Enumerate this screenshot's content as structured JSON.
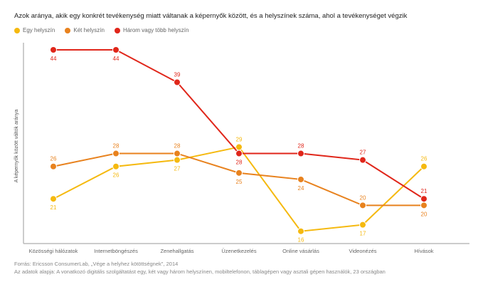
{
  "chart_data": {
    "type": "line",
    "title": "Azok aránya, akik egy konkrét tevékenység miatt váltanak a képernyők között, és a helyszínek száma, ahol a tevékenységet végzik",
    "xlabel": "",
    "ylabel": "A képernyők között váltók aránya",
    "categories": [
      "Közösségi hálózatok",
      "Internetböngészés",
      "Zenehallgatás",
      "Üzenetkezelés",
      "Online vásárlás",
      "Videonézés",
      "Hívások"
    ],
    "ylim": [
      14.1,
      45.1
    ],
    "grid": false,
    "legend_position": "top-left",
    "series": [
      {
        "name": "Egy helyszín",
        "color": "#f5b90f",
        "values": [
          21,
          26,
          27,
          29,
          16,
          17,
          26
        ]
      },
      {
        "name": "Két helyszín",
        "color": "#e8821e",
        "values": [
          26,
          28,
          28,
          25,
          24,
          20,
          20
        ]
      },
      {
        "name": "Három vagy több helyszín",
        "color": "#e0261a",
        "values": [
          44,
          44,
          39,
          28,
          28,
          27,
          21
        ]
      }
    ]
  },
  "footer": {
    "source": "Forrás: Ericsson ConsumerLab, „Vége a helyhez kötöttségnek\", 2014",
    "basis": "Az adatok alapja: A vonatkozó digitális szolgáltatást egy, két vagy három helyszínen, mobiltelefonon, táblagépen vagy asztali gépen használók, 23 országban"
  }
}
